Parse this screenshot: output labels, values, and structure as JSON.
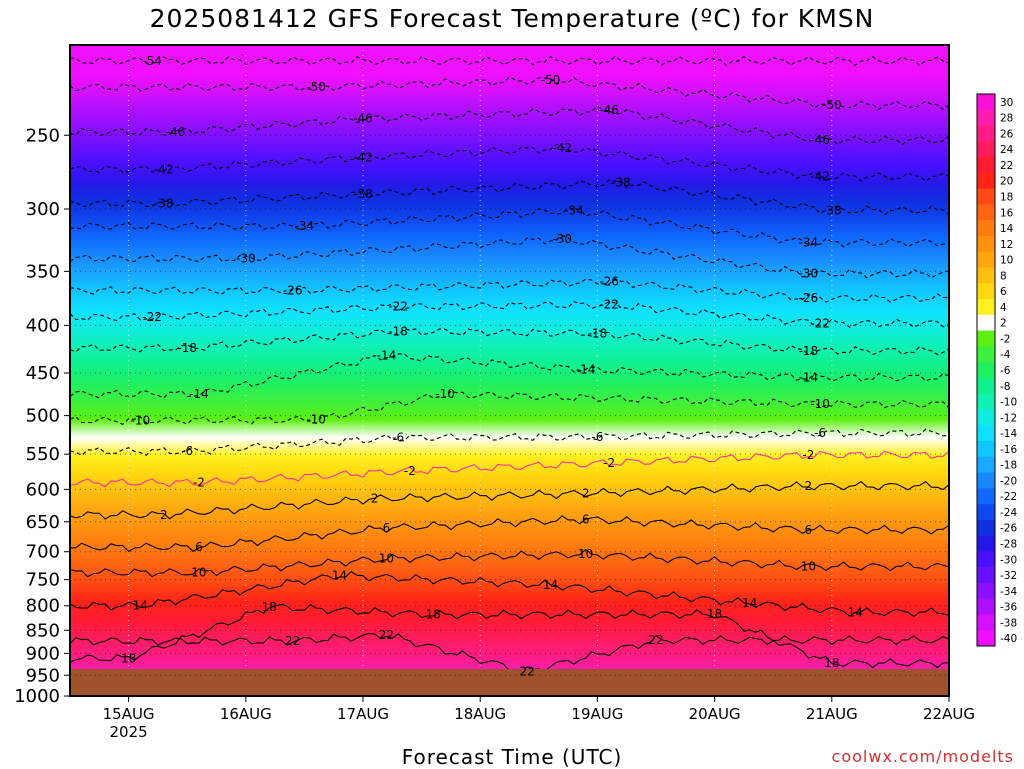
{
  "title": "2025081412 GFS Forecast Temperature (ºC) for KMSN",
  "credit": "coolwx.com/modelts",
  "chart_data": {
    "type": "heatmap",
    "title": "2025081412 GFS Forecast Temperature (ºC) for KMSN",
    "xlabel": "Forecast Time (UTC)",
    "ylabel": "",
    "x_ticks": [
      {
        "label": "15AUG",
        "sub": "2025",
        "day": 15
      },
      {
        "label": "16AUG",
        "sub": "",
        "day": 16
      },
      {
        "label": "17AUG",
        "sub": "",
        "day": 17
      },
      {
        "label": "18AUG",
        "sub": "",
        "day": 18
      },
      {
        "label": "19AUG",
        "sub": "",
        "day": 19
      },
      {
        "label": "20AUG",
        "sub": "",
        "day": 20
      },
      {
        "label": "21AUG",
        "sub": "",
        "day": 21
      },
      {
        "label": "22AUG",
        "sub": "",
        "day": 22
      }
    ],
    "xlim_days": [
      14.5,
      22.0
    ],
    "y_ticks": [
      250,
      300,
      350,
      400,
      450,
      500,
      550,
      600,
      650,
      700,
      750,
      800,
      850,
      900,
      950,
      1000
    ],
    "ylim_hpa": [
      200,
      1000
    ],
    "y_scale": "log-pressure",
    "grid": true,
    "colorbar_levels": [
      30,
      28,
      26,
      24,
      22,
      20,
      18,
      16,
      14,
      12,
      10,
      8,
      6,
      4,
      2,
      -2,
      -4,
      -6,
      -8,
      -10,
      -12,
      -14,
      -16,
      -18,
      -20,
      -22,
      -24,
      -26,
      -28,
      -30,
      -32,
      -34,
      -36,
      -38,
      -40
    ],
    "colorbar_colors": [
      "#ff10d8",
      "#ff1cae",
      "#ff1c84",
      "#ff1c5c",
      "#ff1c30",
      "#ff2418",
      "#ff4a14",
      "#ff6414",
      "#ff7c10",
      "#ff9010",
      "#ffa610",
      "#ffbe10",
      "#ffd810",
      "#fff020",
      "#ffffff",
      "#5cf010",
      "#3ef03e",
      "#1ef060",
      "#10f08c",
      "#10f0b4",
      "#10ece0",
      "#10e0ff",
      "#10c8ff",
      "#18a8ff",
      "#1888ff",
      "#1068ff",
      "#1048f0",
      "#1030e0",
      "#2418e8",
      "#4810ff",
      "#6810ff",
      "#8c10ff",
      "#ae10ff",
      "#d410ff",
      "#f010ff"
    ],
    "contour_labels": [
      {
        "text": "-54",
        "day": 15.2,
        "p": 208
      },
      {
        "text": "-50",
        "day": 16.6,
        "p": 222
      },
      {
        "text": "-50",
        "day": 18.6,
        "p": 218
      },
      {
        "text": "-50",
        "day": 21.0,
        "p": 232
      },
      {
        "text": "-46",
        "day": 15.4,
        "p": 248
      },
      {
        "text": "-46",
        "day": 17.0,
        "p": 240
      },
      {
        "text": "-46",
        "day": 19.1,
        "p": 235
      },
      {
        "text": "-46",
        "day": 20.9,
        "p": 253
      },
      {
        "text": "-42",
        "day": 15.3,
        "p": 272
      },
      {
        "text": "-42",
        "day": 17.0,
        "p": 264
      },
      {
        "text": "-42",
        "day": 18.7,
        "p": 258
      },
      {
        "text": "-42",
        "day": 20.9,
        "p": 277
      },
      {
        "text": "-38",
        "day": 15.3,
        "p": 296
      },
      {
        "text": "-38",
        "day": 17.0,
        "p": 289
      },
      {
        "text": "-38",
        "day": 19.2,
        "p": 281
      },
      {
        "text": "-38",
        "day": 21.0,
        "p": 301
      },
      {
        "text": "-34",
        "day": 16.5,
        "p": 313
      },
      {
        "text": "-34",
        "day": 18.8,
        "p": 301
      },
      {
        "text": "-34",
        "day": 20.8,
        "p": 326
      },
      {
        "text": "-30",
        "day": 16.0,
        "p": 339
      },
      {
        "text": "-30",
        "day": 18.7,
        "p": 323
      },
      {
        "text": "-30",
        "day": 20.8,
        "p": 352
      },
      {
        "text": "-26",
        "day": 16.4,
        "p": 367
      },
      {
        "text": "-26",
        "day": 19.1,
        "p": 359
      },
      {
        "text": "-26",
        "day": 20.8,
        "p": 374
      },
      {
        "text": "-22",
        "day": 15.2,
        "p": 392
      },
      {
        "text": "-22",
        "day": 17.3,
        "p": 382
      },
      {
        "text": "-22",
        "day": 19.1,
        "p": 380
      },
      {
        "text": "-22",
        "day": 20.9,
        "p": 398
      },
      {
        "text": "-18",
        "day": 15.5,
        "p": 423
      },
      {
        "text": "-18",
        "day": 17.3,
        "p": 406
      },
      {
        "text": "-18",
        "day": 19.0,
        "p": 408
      },
      {
        "text": "-18",
        "day": 20.8,
        "p": 426
      },
      {
        "text": "-14",
        "day": 15.6,
        "p": 474
      },
      {
        "text": "-14",
        "day": 17.2,
        "p": 431
      },
      {
        "text": "-14",
        "day": 18.9,
        "p": 446
      },
      {
        "text": "-14",
        "day": 20.8,
        "p": 455
      },
      {
        "text": "-10",
        "day": 15.1,
        "p": 506
      },
      {
        "text": "-10",
        "day": 16.6,
        "p": 505
      },
      {
        "text": "-10",
        "day": 17.7,
        "p": 474
      },
      {
        "text": "-10",
        "day": 20.9,
        "p": 486
      },
      {
        "text": "-6",
        "day": 15.5,
        "p": 546
      },
      {
        "text": "-6",
        "day": 17.3,
        "p": 528
      },
      {
        "text": "-6",
        "day": 19.0,
        "p": 527
      },
      {
        "text": "-6",
        "day": 20.9,
        "p": 522
      },
      {
        "text": "-2",
        "day": 15.6,
        "p": 590
      },
      {
        "text": "-2",
        "day": 17.4,
        "p": 573
      },
      {
        "text": "-2",
        "day": 19.1,
        "p": 562
      },
      {
        "text": "-2",
        "day": 20.8,
        "p": 551
      },
      {
        "text": "2",
        "day": 15.3,
        "p": 639
      },
      {
        "text": "2",
        "day": 17.1,
        "p": 614
      },
      {
        "text": "2",
        "day": 18.9,
        "p": 606
      },
      {
        "text": "2",
        "day": 20.8,
        "p": 595
      },
      {
        "text": "6",
        "day": 15.6,
        "p": 692
      },
      {
        "text": "6",
        "day": 17.2,
        "p": 660
      },
      {
        "text": "6",
        "day": 18.9,
        "p": 646
      },
      {
        "text": "6",
        "day": 20.8,
        "p": 663
      },
      {
        "text": "10",
        "day": 15.6,
        "p": 737
      },
      {
        "text": "10",
        "day": 17.2,
        "p": 712
      },
      {
        "text": "10",
        "day": 18.9,
        "p": 704
      },
      {
        "text": "10",
        "day": 20.8,
        "p": 726
      },
      {
        "text": "14",
        "day": 15.1,
        "p": 800
      },
      {
        "text": "14",
        "day": 16.8,
        "p": 742
      },
      {
        "text": "14",
        "day": 18.6,
        "p": 760
      },
      {
        "text": "14",
        "day": 20.3,
        "p": 795
      },
      {
        "text": "14",
        "day": 21.2,
        "p": 813
      },
      {
        "text": "18",
        "day": 15.0,
        "p": 911
      },
      {
        "text": "18",
        "day": 16.2,
        "p": 802
      },
      {
        "text": "18",
        "day": 17.6,
        "p": 818
      },
      {
        "text": "18",
        "day": 20.0,
        "p": 817
      },
      {
        "text": "18",
        "day": 21.0,
        "p": 922
      },
      {
        "text": "22",
        "day": 16.4,
        "p": 873
      },
      {
        "text": "22",
        "day": 17.2,
        "p": 860
      },
      {
        "text": "22",
        "day": 18.4,
        "p": 941
      },
      {
        "text": "22",
        "day": 19.5,
        "p": 871
      }
    ]
  }
}
